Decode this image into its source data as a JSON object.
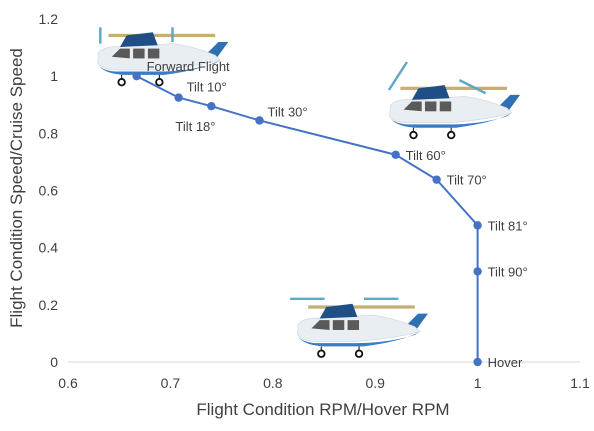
{
  "chart_data": {
    "type": "scatter",
    "xlabel": "Flight Condition RPM/Hover RPM",
    "ylabel": "Flight Condition Speed/Cruise Speed",
    "xlim": [
      0.6,
      1.1
    ],
    "ylim": [
      0,
      1.2
    ],
    "xticks": [
      "0.6",
      "0.7",
      "0.8",
      "0.9",
      "1",
      "1.1"
    ],
    "yticks": [
      "0",
      "0.2",
      "0.4",
      "0.6",
      "0.8",
      "1",
      "1.2"
    ],
    "grid": false,
    "series_color": "#4472c4",
    "points": [
      {
        "x": 0.667,
        "y": 1.0,
        "label": "Forward Flight"
      },
      {
        "x": 0.708,
        "y": 0.925,
        "label": "Tilt 10°"
      },
      {
        "x": 0.74,
        "y": 0.895,
        "label": "Tilt 18°"
      },
      {
        "x": 0.787,
        "y": 0.845,
        "label": "Tilt 30°"
      },
      {
        "x": 0.92,
        "y": 0.725,
        "label": "Tilt 60°"
      },
      {
        "x": 0.96,
        "y": 0.638,
        "label": "Tilt 70°"
      },
      {
        "x": 1.0,
        "y": 0.478,
        "label": "Tilt 81°"
      },
      {
        "x": 1.0,
        "y": 0.317,
        "label": "Tilt 90°"
      },
      {
        "x": 1.0,
        "y": 0.0,
        "label": "Hover"
      }
    ],
    "aircraft_icons": [
      {
        "name": "aircraft-forward-flight-icon",
        "rotor_mode": "forward",
        "anchor": {
          "x": 0.67,
          "y": 1.085
        }
      },
      {
        "name": "aircraft-transition-icon",
        "rotor_mode": "transition",
        "anchor": {
          "x": 0.955,
          "y": 0.9
        }
      },
      {
        "name": "aircraft-hover-icon",
        "rotor_mode": "hover",
        "anchor": {
          "x": 0.865,
          "y": 0.135
        }
      }
    ]
  }
}
